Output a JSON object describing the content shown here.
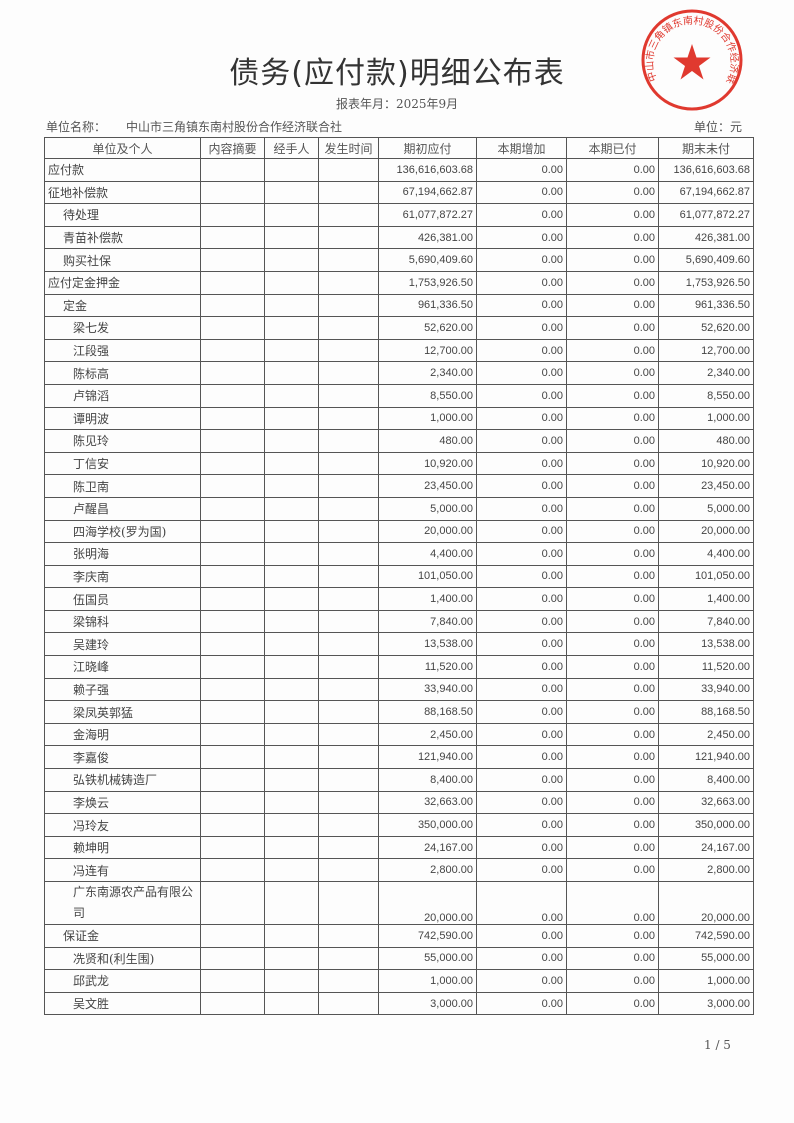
{
  "title": "债务(应付款)明细公布表",
  "period": "报表年月：2025年9月",
  "unit_label": "单位名称：",
  "unit_name": "中山市三角镇东南村股份合作经济联合社",
  "currency": "单位：元",
  "seal_text": "中山市三角镇东南村股份合作经济联合社",
  "seal_color": "#e0392f",
  "headers": [
    "单位及个人",
    "内容摘要",
    "经手人",
    "发生时间",
    "期初应付",
    "本期增加",
    "本期已付",
    "期末未付"
  ],
  "rows": [
    {
      "name": "应付款",
      "level": 0,
      "begin": "136,616,603.68",
      "add": "0.00",
      "paid": "0.00",
      "end": "136,616,603.68"
    },
    {
      "name": "征地补偿款",
      "level": 0,
      "begin": "67,194,662.87",
      "add": "0.00",
      "paid": "0.00",
      "end": "67,194,662.87"
    },
    {
      "name": "待处理",
      "level": 1,
      "begin": "61,077,872.27",
      "add": "0.00",
      "paid": "0.00",
      "end": "61,077,872.27"
    },
    {
      "name": "青苗补偿款",
      "level": 1,
      "begin": "426,381.00",
      "add": "0.00",
      "paid": "0.00",
      "end": "426,381.00"
    },
    {
      "name": "购买社保",
      "level": 1,
      "begin": "5,690,409.60",
      "add": "0.00",
      "paid": "0.00",
      "end": "5,690,409.60"
    },
    {
      "name": "应付定金押金",
      "level": 0,
      "begin": "1,753,926.50",
      "add": "0.00",
      "paid": "0.00",
      "end": "1,753,926.50"
    },
    {
      "name": "定金",
      "level": 1,
      "begin": "961,336.50",
      "add": "0.00",
      "paid": "0.00",
      "end": "961,336.50"
    },
    {
      "name": "梁七发",
      "level": 2,
      "begin": "52,620.00",
      "add": "0.00",
      "paid": "0.00",
      "end": "52,620.00"
    },
    {
      "name": "江段强",
      "level": 2,
      "begin": "12,700.00",
      "add": "0.00",
      "paid": "0.00",
      "end": "12,700.00"
    },
    {
      "name": "陈标高",
      "level": 2,
      "begin": "2,340.00",
      "add": "0.00",
      "paid": "0.00",
      "end": "2,340.00"
    },
    {
      "name": "卢锦滔",
      "level": 2,
      "begin": "8,550.00",
      "add": "0.00",
      "paid": "0.00",
      "end": "8,550.00"
    },
    {
      "name": "谭明波",
      "level": 2,
      "begin": "1,000.00",
      "add": "0.00",
      "paid": "0.00",
      "end": "1,000.00"
    },
    {
      "name": "陈见玲",
      "level": 2,
      "begin": "480.00",
      "add": "0.00",
      "paid": "0.00",
      "end": "480.00"
    },
    {
      "name": "丁信安",
      "level": 2,
      "begin": "10,920.00",
      "add": "0.00",
      "paid": "0.00",
      "end": "10,920.00"
    },
    {
      "name": "陈卫南",
      "level": 2,
      "begin": "23,450.00",
      "add": "0.00",
      "paid": "0.00",
      "end": "23,450.00"
    },
    {
      "name": "卢醒昌",
      "level": 2,
      "begin": "5,000.00",
      "add": "0.00",
      "paid": "0.00",
      "end": "5,000.00"
    },
    {
      "name": "四海学校(罗为国)",
      "level": 2,
      "begin": "20,000.00",
      "add": "0.00",
      "paid": "0.00",
      "end": "20,000.00"
    },
    {
      "name": "张明海",
      "level": 2,
      "begin": "4,400.00",
      "add": "0.00",
      "paid": "0.00",
      "end": "4,400.00"
    },
    {
      "name": "李庆南",
      "level": 2,
      "begin": "101,050.00",
      "add": "0.00",
      "paid": "0.00",
      "end": "101,050.00"
    },
    {
      "name": "伍国员",
      "level": 2,
      "begin": "1,400.00",
      "add": "0.00",
      "paid": "0.00",
      "end": "1,400.00"
    },
    {
      "name": "梁锦科",
      "level": 2,
      "begin": "7,840.00",
      "add": "0.00",
      "paid": "0.00",
      "end": "7,840.00"
    },
    {
      "name": "吴建玲",
      "level": 2,
      "begin": "13,538.00",
      "add": "0.00",
      "paid": "0.00",
      "end": "13,538.00"
    },
    {
      "name": "江晓峰",
      "level": 2,
      "begin": "11,520.00",
      "add": "0.00",
      "paid": "0.00",
      "end": "11,520.00"
    },
    {
      "name": "赖子强",
      "level": 2,
      "begin": "33,940.00",
      "add": "0.00",
      "paid": "0.00",
      "end": "33,940.00"
    },
    {
      "name": "梁凤英郭猛",
      "level": 2,
      "begin": "88,168.50",
      "add": "0.00",
      "paid": "0.00",
      "end": "88,168.50"
    },
    {
      "name": "金海明",
      "level": 2,
      "begin": "2,450.00",
      "add": "0.00",
      "paid": "0.00",
      "end": "2,450.00"
    },
    {
      "name": "李嘉俊",
      "level": 2,
      "begin": "121,940.00",
      "add": "0.00",
      "paid": "0.00",
      "end": "121,940.00"
    },
    {
      "name": "弘铁机械铸造厂",
      "level": 2,
      "begin": "8,400.00",
      "add": "0.00",
      "paid": "0.00",
      "end": "8,400.00"
    },
    {
      "name": "李焕云",
      "level": 2,
      "begin": "32,663.00",
      "add": "0.00",
      "paid": "0.00",
      "end": "32,663.00"
    },
    {
      "name": "冯玲友",
      "level": 2,
      "begin": "350,000.00",
      "add": "0.00",
      "paid": "0.00",
      "end": "350,000.00"
    },
    {
      "name": "赖坤明",
      "level": 2,
      "begin": "24,167.00",
      "add": "0.00",
      "paid": "0.00",
      "end": "24,167.00"
    },
    {
      "name": "冯连有",
      "level": 2,
      "begin": "2,800.00",
      "add": "0.00",
      "paid": "0.00",
      "end": "2,800.00"
    },
    {
      "name": "广东南源农产品有限公司",
      "level": 2,
      "tall": true,
      "begin": "20,000.00",
      "add": "0.00",
      "paid": "0.00",
      "end": "20,000.00"
    },
    {
      "name": "保证金",
      "level": 1,
      "begin": "742,590.00",
      "add": "0.00",
      "paid": "0.00",
      "end": "742,590.00"
    },
    {
      "name": "冼贤和(利生围)",
      "level": 2,
      "begin": "55,000.00",
      "add": "0.00",
      "paid": "0.00",
      "end": "55,000.00"
    },
    {
      "name": "邱武龙",
      "level": 2,
      "begin": "1,000.00",
      "add": "0.00",
      "paid": "0.00",
      "end": "1,000.00"
    },
    {
      "name": "吴文胜",
      "level": 2,
      "begin": "3,000.00",
      "add": "0.00",
      "paid": "0.00",
      "end": "3,000.00"
    }
  ],
  "page_number": "1 / 5"
}
